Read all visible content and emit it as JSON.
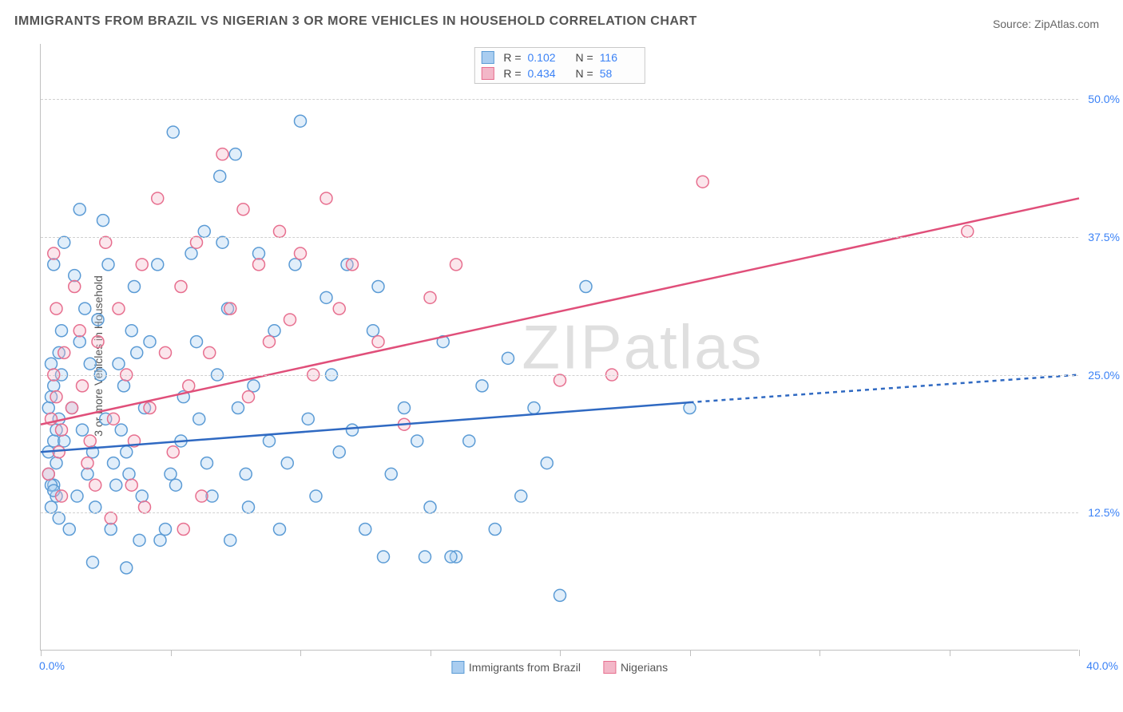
{
  "title": "IMMIGRANTS FROM BRAZIL VS NIGERIAN 3 OR MORE VEHICLES IN HOUSEHOLD CORRELATION CHART",
  "source": "Source: ZipAtlas.com",
  "y_axis_label": "3 or more Vehicles in Household",
  "watermark": "ZIPatlas",
  "chart": {
    "type": "scatter-with-trend",
    "background_color": "#ffffff",
    "grid_color": "#d0d0d0",
    "axis_color": "#c0c0c0",
    "tick_label_color": "#3b82f6",
    "tick_fontsize": 14,
    "title_fontsize": 16,
    "title_color": "#555555",
    "xlim": [
      0,
      40
    ],
    "ylim": [
      0,
      55
    ],
    "x_ticks": [
      0,
      5,
      10,
      15,
      20,
      25,
      30,
      35,
      40
    ],
    "x_tick_labels": {
      "0": "0.0%",
      "40": "40.0%"
    },
    "y_ticks": [
      {
        "value": 12.5,
        "label": "12.5%"
      },
      {
        "value": 25.0,
        "label": "25.0%"
      },
      {
        "value": 37.5,
        "label": "37.5%"
      },
      {
        "value": 50.0,
        "label": "50.0%"
      }
    ],
    "marker_radius": 7.5,
    "marker_stroke_width": 1.5,
    "marker_fill_opacity": 0.35,
    "series": [
      {
        "name": "Immigrants from Brazil",
        "color_fill": "#a9cdf0",
        "color_stroke": "#5b9bd5",
        "R": "0.102",
        "N": "116",
        "trend": {
          "x1": 0,
          "y1": 18.0,
          "x2": 25,
          "y2": 22.5,
          "x2_dash": 40,
          "y2_dash": 25.0,
          "color": "#2f69c2",
          "width": 2.5,
          "dash": "5,5"
        },
        "points": [
          [
            0.3,
            22
          ],
          [
            0.5,
            19
          ],
          [
            0.4,
            23
          ],
          [
            0.6,
            20
          ],
          [
            0.5,
            24
          ],
          [
            0.7,
            21
          ],
          [
            0.3,
            18
          ],
          [
            0.8,
            25
          ],
          [
            0.6,
            17
          ],
          [
            0.4,
            26
          ],
          [
            0.9,
            19
          ],
          [
            0.5,
            15
          ],
          [
            0.7,
            27
          ],
          [
            0.3,
            16
          ],
          [
            0.8,
            29
          ],
          [
            0.6,
            14
          ],
          [
            0.5,
            35
          ],
          [
            0.4,
            13
          ],
          [
            0.9,
            37
          ],
          [
            0.7,
            12
          ],
          [
            1.2,
            22
          ],
          [
            1.5,
            28
          ],
          [
            1.8,
            16
          ],
          [
            1.3,
            34
          ],
          [
            1.6,
            20
          ],
          [
            1.9,
            26
          ],
          [
            1.4,
            14
          ],
          [
            1.7,
            31
          ],
          [
            2.0,
            18
          ],
          [
            1.1,
            11
          ],
          [
            2.3,
            25
          ],
          [
            2.6,
            35
          ],
          [
            2.9,
            15
          ],
          [
            2.2,
            30
          ],
          [
            2.5,
            21
          ],
          [
            2.8,
            17
          ],
          [
            2.1,
            13
          ],
          [
            2.4,
            39
          ],
          [
            2.7,
            11
          ],
          [
            3.0,
            26
          ],
          [
            3.3,
            18
          ],
          [
            3.6,
            33
          ],
          [
            3.9,
            14
          ],
          [
            3.2,
            24
          ],
          [
            3.5,
            29
          ],
          [
            3.8,
            10
          ],
          [
            3.1,
            20
          ],
          [
            3.4,
            16
          ],
          [
            3.7,
            27
          ],
          [
            4.0,
            22
          ],
          [
            4.5,
            35
          ],
          [
            4.2,
            28
          ],
          [
            4.8,
            11
          ],
          [
            5.1,
            47
          ],
          [
            5.5,
            23
          ],
          [
            5.8,
            36
          ],
          [
            5.2,
            15
          ],
          [
            5.4,
            19
          ],
          [
            6.0,
            28
          ],
          [
            6.3,
            38
          ],
          [
            6.6,
            14
          ],
          [
            6.1,
            21
          ],
          [
            6.4,
            17
          ],
          [
            6.8,
            25
          ],
          [
            7.0,
            37
          ],
          [
            7.3,
            10
          ],
          [
            7.6,
            22
          ],
          [
            7.9,
            16
          ],
          [
            7.2,
            31
          ],
          [
            8.0,
            13
          ],
          [
            8.4,
            36
          ],
          [
            8.8,
            19
          ],
          [
            8.2,
            24
          ],
          [
            9.0,
            29
          ],
          [
            9.5,
            17
          ],
          [
            9.2,
            11
          ],
          [
            9.8,
            35
          ],
          [
            10.0,
            48
          ],
          [
            10.3,
            21
          ],
          [
            10.6,
            14
          ],
          [
            11.0,
            32
          ],
          [
            11.5,
            18
          ],
          [
            11.2,
            25
          ],
          [
            11.8,
            35
          ],
          [
            12.0,
            20
          ],
          [
            12.5,
            11
          ],
          [
            12.8,
            29
          ],
          [
            13.0,
            33
          ],
          [
            13.5,
            16
          ],
          [
            14.0,
            22
          ],
          [
            14.5,
            19
          ],
          [
            15.0,
            13
          ],
          [
            15.5,
            28
          ],
          [
            16.0,
            8.5
          ],
          [
            16.5,
            19
          ],
          [
            17.0,
            24
          ],
          [
            17.5,
            11
          ],
          [
            18.0,
            26.5
          ],
          [
            18.5,
            14
          ],
          [
            19.0,
            22
          ],
          [
            19.5,
            17
          ],
          [
            20.0,
            5
          ],
          [
            14.8,
            8.5
          ],
          [
            15.8,
            8.5
          ],
          [
            21.0,
            33
          ],
          [
            25.0,
            22
          ],
          [
            13.2,
            8.5
          ],
          [
            7.5,
            45
          ],
          [
            6.9,
            43
          ],
          [
            5.0,
            16
          ],
          [
            4.6,
            10
          ],
          [
            3.3,
            7.5
          ],
          [
            2.0,
            8
          ],
          [
            1.5,
            40
          ],
          [
            0.4,
            15
          ],
          [
            0.5,
            14.5
          ]
        ]
      },
      {
        "name": "Nigerians",
        "color_fill": "#f3b7c8",
        "color_stroke": "#e76f8f",
        "R": "0.434",
        "N": "58",
        "trend": {
          "x1": 0,
          "y1": 20.5,
          "x2": 40,
          "y2": 41.0,
          "color": "#e04f7a",
          "width": 2.5
        },
        "points": [
          [
            0.4,
            21
          ],
          [
            0.6,
            23
          ],
          [
            0.8,
            20
          ],
          [
            0.5,
            25
          ],
          [
            0.7,
            18
          ],
          [
            0.9,
            27
          ],
          [
            0.3,
            16
          ],
          [
            0.6,
            31
          ],
          [
            0.8,
            14
          ],
          [
            0.5,
            36
          ],
          [
            1.2,
            22
          ],
          [
            1.5,
            29
          ],
          [
            1.8,
            17
          ],
          [
            1.3,
            33
          ],
          [
            1.6,
            24
          ],
          [
            1.9,
            19
          ],
          [
            2.2,
            28
          ],
          [
            2.5,
            37
          ],
          [
            2.8,
            21
          ],
          [
            2.1,
            15
          ],
          [
            3.0,
            31
          ],
          [
            3.3,
            25
          ],
          [
            3.6,
            19
          ],
          [
            3.9,
            35
          ],
          [
            4.2,
            22
          ],
          [
            4.5,
            41
          ],
          [
            4.8,
            27
          ],
          [
            5.1,
            18
          ],
          [
            5.4,
            33
          ],
          [
            5.7,
            24
          ],
          [
            6.0,
            37
          ],
          [
            6.5,
            27
          ],
          [
            7.0,
            45
          ],
          [
            7.3,
            31
          ],
          [
            7.8,
            40
          ],
          [
            8.0,
            23
          ],
          [
            8.4,
            35
          ],
          [
            8.8,
            28
          ],
          [
            9.2,
            38
          ],
          [
            9.6,
            30
          ],
          [
            10.0,
            36
          ],
          [
            10.5,
            25
          ],
          [
            11.0,
            41
          ],
          [
            11.5,
            31
          ],
          [
            12.0,
            35
          ],
          [
            13.0,
            28
          ],
          [
            14.0,
            20.5
          ],
          [
            15.0,
            32
          ],
          [
            20.0,
            24.5
          ],
          [
            22.0,
            25
          ],
          [
            25.5,
            42.5
          ],
          [
            35.7,
            38
          ],
          [
            6.2,
            14
          ],
          [
            5.5,
            11
          ],
          [
            4.0,
            13
          ],
          [
            3.5,
            15
          ],
          [
            2.7,
            12
          ],
          [
            16.0,
            35
          ]
        ]
      }
    ]
  },
  "legend": {
    "stats_labels": {
      "R": "R =",
      "N": "N ="
    },
    "bottom": [
      {
        "label": "Immigrants from Brazil",
        "fill": "#a9cdf0",
        "stroke": "#5b9bd5"
      },
      {
        "label": "Nigerians",
        "fill": "#f3b7c8",
        "stroke": "#e76f8f"
      }
    ]
  }
}
